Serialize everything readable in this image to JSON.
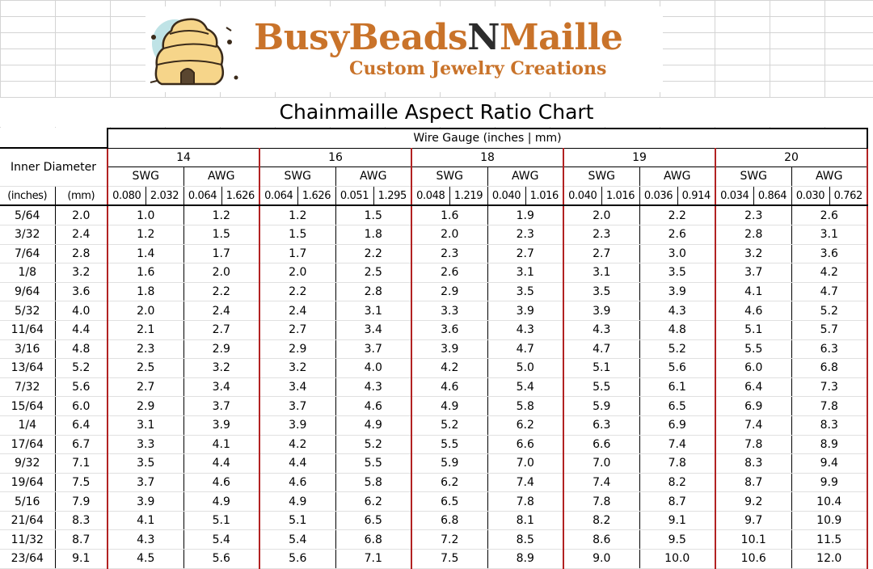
{
  "brand": {
    "name_part1": "BusyBeads",
    "name_part2": "N",
    "name_part3": "Maille",
    "tagline": "Custom Jewelry Creations",
    "primary_color": "#c9732a",
    "dark_color": "#2c2c2c",
    "logo_icon": "beehive-icon"
  },
  "title": "Chainmaille Aspect Ratio Chart",
  "header": {
    "wire_gauge_label": "Wire Gauge (inches | mm)",
    "inner_diameter_label": "Inner Diameter",
    "inches_label": "(inches)",
    "mm_label": "(mm)"
  },
  "gauges": [
    {
      "gauge": "14",
      "swg": "SWG",
      "awg": "AWG",
      "swg_in": "0.080",
      "swg_mm": "2.032",
      "awg_in": "0.064",
      "awg_mm": "1.626"
    },
    {
      "gauge": "16",
      "swg": "SWG",
      "awg": "AWG",
      "swg_in": "0.064",
      "swg_mm": "1.626",
      "awg_in": "0.051",
      "awg_mm": "1.295"
    },
    {
      "gauge": "18",
      "swg": "SWG",
      "awg": "AWG",
      "swg_in": "0.048",
      "swg_mm": "1.219",
      "awg_in": "0.040",
      "awg_mm": "1.016"
    },
    {
      "gauge": "19",
      "swg": "SWG",
      "awg": "AWG",
      "swg_in": "0.040",
      "swg_mm": "1.016",
      "awg_in": "0.036",
      "awg_mm": "0.914"
    },
    {
      "gauge": "20",
      "swg": "SWG",
      "awg": "AWG",
      "swg_in": "0.034",
      "swg_mm": "0.864",
      "awg_in": "0.030",
      "awg_mm": "0.762"
    }
  ],
  "rows": [
    [
      "5/64",
      "2.0",
      "1.0",
      "1.2",
      "1.2",
      "1.5",
      "1.6",
      "1.9",
      "2.0",
      "2.2",
      "2.3",
      "2.6"
    ],
    [
      "3/32",
      "2.4",
      "1.2",
      "1.5",
      "1.5",
      "1.8",
      "2.0",
      "2.3",
      "2.3",
      "2.6",
      "2.8",
      "3.1"
    ],
    [
      "7/64",
      "2.8",
      "1.4",
      "1.7",
      "1.7",
      "2.2",
      "2.3",
      "2.7",
      "2.7",
      "3.0",
      "3.2",
      "3.6"
    ],
    [
      "1/8",
      "3.2",
      "1.6",
      "2.0",
      "2.0",
      "2.5",
      "2.6",
      "3.1",
      "3.1",
      "3.5",
      "3.7",
      "4.2"
    ],
    [
      "9/64",
      "3.6",
      "1.8",
      "2.2",
      "2.2",
      "2.8",
      "2.9",
      "3.5",
      "3.5",
      "3.9",
      "4.1",
      "4.7"
    ],
    [
      "5/32",
      "4.0",
      "2.0",
      "2.4",
      "2.4",
      "3.1",
      "3.3",
      "3.9",
      "3.9",
      "4.3",
      "4.6",
      "5.2"
    ],
    [
      "11/64",
      "4.4",
      "2.1",
      "2.7",
      "2.7",
      "3.4",
      "3.6",
      "4.3",
      "4.3",
      "4.8",
      "5.1",
      "5.7"
    ],
    [
      "3/16",
      "4.8",
      "2.3",
      "2.9",
      "2.9",
      "3.7",
      "3.9",
      "4.7",
      "4.7",
      "5.2",
      "5.5",
      "6.3"
    ],
    [
      "13/64",
      "5.2",
      "2.5",
      "3.2",
      "3.2",
      "4.0",
      "4.2",
      "5.0",
      "5.1",
      "5.6",
      "6.0",
      "6.8"
    ],
    [
      "7/32",
      "5.6",
      "2.7",
      "3.4",
      "3.4",
      "4.3",
      "4.6",
      "5.4",
      "5.5",
      "6.1",
      "6.4",
      "7.3"
    ],
    [
      "15/64",
      "6.0",
      "2.9",
      "3.7",
      "3.7",
      "4.6",
      "4.9",
      "5.8",
      "5.9",
      "6.5",
      "6.9",
      "7.8"
    ],
    [
      "1/4",
      "6.4",
      "3.1",
      "3.9",
      "3.9",
      "4.9",
      "5.2",
      "6.2",
      "6.3",
      "6.9",
      "7.4",
      "8.3"
    ],
    [
      "17/64",
      "6.7",
      "3.3",
      "4.1",
      "4.2",
      "5.2",
      "5.5",
      "6.6",
      "6.6",
      "7.4",
      "7.8",
      "8.9"
    ],
    [
      "9/32",
      "7.1",
      "3.5",
      "4.4",
      "4.4",
      "5.5",
      "5.9",
      "7.0",
      "7.0",
      "7.8",
      "8.3",
      "9.4"
    ],
    [
      "19/64",
      "7.5",
      "3.7",
      "4.6",
      "4.6",
      "5.8",
      "6.2",
      "7.4",
      "7.4",
      "8.2",
      "8.7",
      "9.9"
    ],
    [
      "5/16",
      "7.9",
      "3.9",
      "4.9",
      "4.9",
      "6.2",
      "6.5",
      "7.8",
      "7.8",
      "8.7",
      "9.2",
      "10.4"
    ],
    [
      "21/64",
      "8.3",
      "4.1",
      "5.1",
      "5.1",
      "6.5",
      "6.8",
      "8.1",
      "8.2",
      "9.1",
      "9.7",
      "10.9"
    ],
    [
      "11/32",
      "8.7",
      "4.3",
      "5.4",
      "5.4",
      "6.8",
      "7.2",
      "8.5",
      "8.6",
      "9.5",
      "10.1",
      "11.5"
    ],
    [
      "23/64",
      "9.1",
      "4.5",
      "5.6",
      "5.6",
      "7.1",
      "7.5",
      "8.9",
      "9.0",
      "10.0",
      "10.6",
      "12.0"
    ]
  ]
}
